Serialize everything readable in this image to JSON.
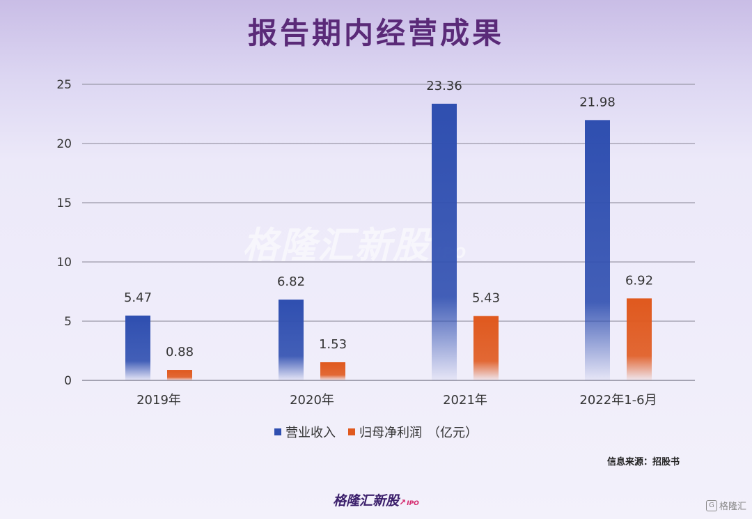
{
  "title": "报告期内经营成果",
  "source": "信息来源：招股书",
  "logo": {
    "text": "格隆汇新股",
    "sub": "IPO"
  },
  "watermark": {
    "text": "格隆汇新股",
    "sub": "IPO"
  },
  "corner_badge": "格隆汇",
  "colors": {
    "revenue": "#2f4fb0",
    "profit": "#e0591e",
    "title": "#5a2a78"
  },
  "legend": {
    "unit": "（亿元）"
  },
  "chart_data": {
    "type": "bar",
    "categories": [
      "2019年",
      "2020年",
      "2021年",
      "2022年1-6月"
    ],
    "series": [
      {
        "name": "营业收入",
        "values": [
          5.47,
          6.82,
          23.36,
          21.98
        ]
      },
      {
        "name": "归母净利润",
        "values": [
          0.88,
          1.53,
          5.43,
          6.92
        ]
      }
    ],
    "data_labels": [
      [
        "5.47",
        "6.82",
        "23.36",
        "21.98"
      ],
      [
        "0.88",
        "1.53",
        "5.43",
        "6.92"
      ]
    ],
    "ylim": [
      0,
      25
    ],
    "yticks": [
      "0",
      "5",
      "10",
      "15",
      "20",
      "25"
    ],
    "grid": true,
    "legend_position": "bottom"
  }
}
